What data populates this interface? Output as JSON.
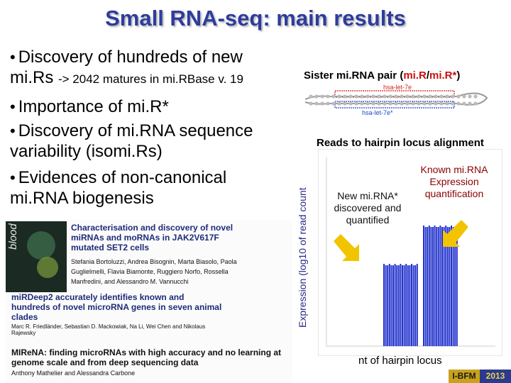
{
  "slide": {
    "title": "Small RNA-seq: main results",
    "bullets": {
      "b1_a": "Discovery of hundreds of new",
      "b1_b": "mi.Rs",
      "b1_c": "-> 2042 matures in mi.RBase v. 19",
      "b2": "Importance of mi.R*",
      "b3_a": "Discovery of mi.RNA sequence",
      "b3_b": "variability (isomi.Rs)",
      "b4_a": "Evidences of non-canonical",
      "b4_b": "mi.RNA biogenesis"
    },
    "bullet_glyph": "•"
  },
  "figure": {
    "sister_pair": {
      "prefix": "Sister mi.RNA pair (",
      "mir": "mi.R",
      "sep": "/",
      "mirstar": "mi.R*",
      "suffix": ")",
      "label_top": "hsa-let-7e",
      "label_bottom": "hsa-let-7e*"
    },
    "reads_title": "Reads to hairpin locus alignment",
    "ylabel": "Expression (log10 of read count",
    "known_label": "Known mi.RNA Expression quantification",
    "new_label": "New mi.RNA* discovered and quantified",
    "xlabel": "nt of hairpin locus",
    "arrow_color": "#f2c400"
  },
  "papers": [
    {
      "title": "Characterisation and discovery of novel miRNAs and moRNAs in JAK2V617F mutated SET2 cells",
      "authors": "Stefania Bortoluzzi, Andrea Bisognin, Marta Biasolo, Paola Guglielmelli, Flavia Biamonte, Ruggiero Norfo, Rossella Manfredini, and Alessandro M. Vannucchi"
    },
    {
      "title": "miRDeep2 accurately identifies known and hundreds of novel microRNA genes in seven animal clades",
      "authors": "Marc R. Friedländer, Sebastian D. Mackowiak, Na Li, Wei Chen and Nikolaus Rajewsky"
    },
    {
      "title": "MIReNA: finding microRNAs with high accuracy and no learning at genome scale and from deep sequencing data",
      "authors": "Anthony Mathelier and Alessandra Carbone"
    }
  ],
  "cover_word": "blood",
  "badge": {
    "org": "I-BFM",
    "year": "2013"
  }
}
